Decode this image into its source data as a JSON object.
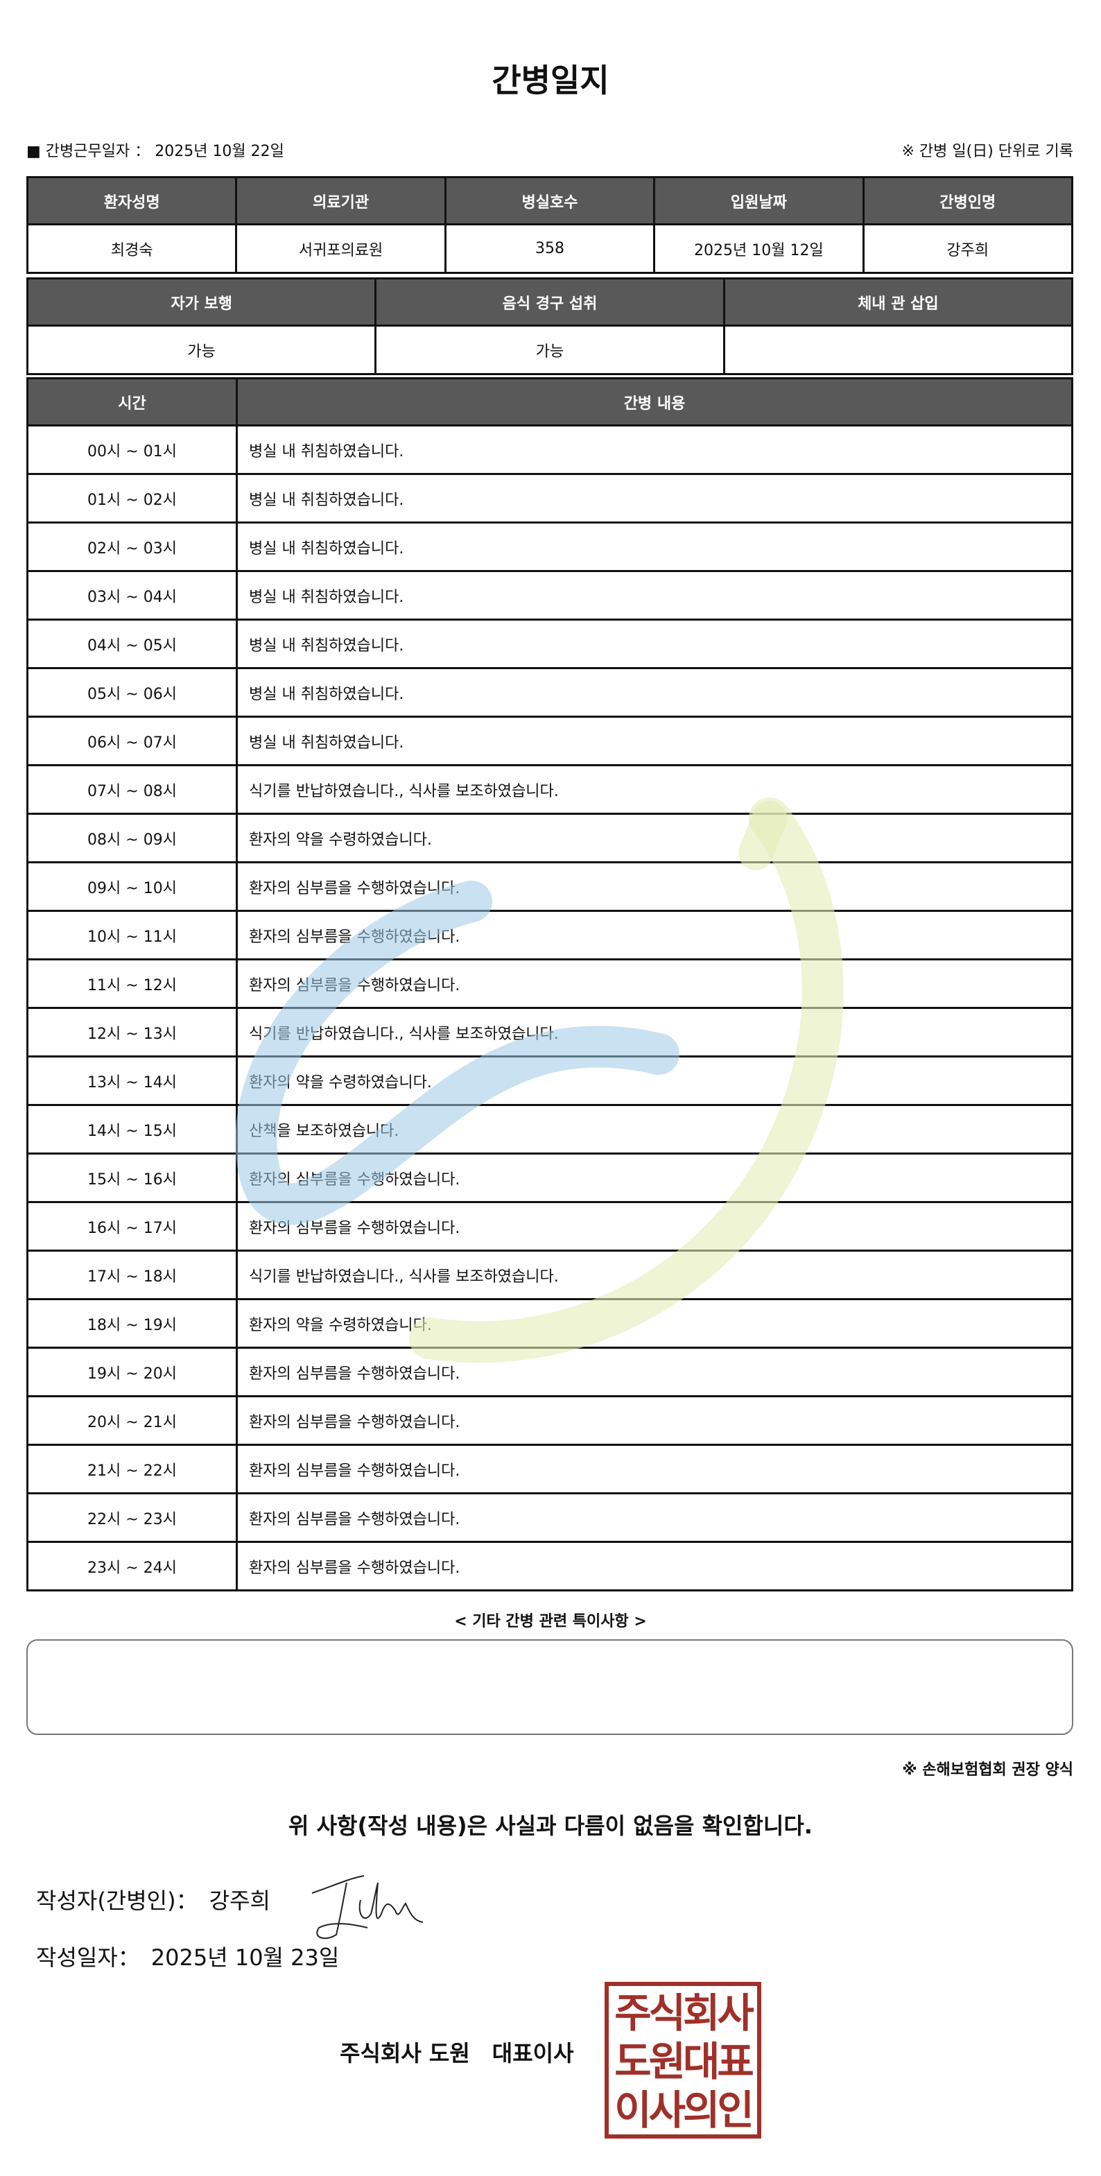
{
  "title": "간병일지",
  "info": {
    "work_date_label": "■ 간병근무일자 ：",
    "work_date": "2025년 10월 22일",
    "note": "※ 간병 일(日) 단위로 기록"
  },
  "patient": {
    "headers": [
      "환자성명",
      "의료기관",
      "병실호수",
      "입원날짜",
      "간병인명"
    ],
    "values": [
      "최경숙",
      "서귀포의료원",
      "358",
      "2025년 10월 12일",
      "강주희"
    ]
  },
  "status": {
    "headers": [
      "자가 보행",
      "음식 경구 섭취",
      "체내 관 삽입"
    ],
    "values": [
      "가능",
      "가능",
      ""
    ]
  },
  "log": {
    "headers": [
      "시간",
      "간병 내용"
    ],
    "rows": [
      [
        "00시 ~ 01시",
        "병실 내 취침하였습니다."
      ],
      [
        "01시 ~ 02시",
        "병실 내 취침하였습니다."
      ],
      [
        "02시 ~ 03시",
        "병실 내 취침하였습니다."
      ],
      [
        "03시 ~ 04시",
        "병실 내 취침하였습니다."
      ],
      [
        "04시 ~ 05시",
        "병실 내 취침하였습니다."
      ],
      [
        "05시 ~ 06시",
        "병실 내 취침하였습니다."
      ],
      [
        "06시 ~ 07시",
        "병실 내 취침하였습니다."
      ],
      [
        "07시 ~ 08시",
        "식기를 반납하였습니다., 식사를 보조하였습니다."
      ],
      [
        "08시 ~ 09시",
        "환자의 약을 수령하였습니다."
      ],
      [
        "09시 ~ 10시",
        "환자의 심부름을 수행하였습니다."
      ],
      [
        "10시 ~ 11시",
        "환자의 심부름을 수행하였습니다."
      ],
      [
        "11시 ~ 12시",
        "환자의 심부름을 수행하였습니다."
      ],
      [
        "12시 ~ 13시",
        "식기를 반납하였습니다., 식사를 보조하였습니다."
      ],
      [
        "13시 ~ 14시",
        "환자의 약을 수령하였습니다."
      ],
      [
        "14시 ~ 15시",
        "산책을 보조하였습니다."
      ],
      [
        "15시 ~ 16시",
        "환자의 심부름을 수행하였습니다."
      ],
      [
        "16시 ~ 17시",
        "환자의 심부름을 수행하였습니다."
      ],
      [
        "17시 ~ 18시",
        "식기를 반납하였습니다., 식사를 보조하였습니다."
      ],
      [
        "18시 ~ 19시",
        "환자의 약을 수령하였습니다."
      ],
      [
        "19시 ~ 20시",
        "환자의 심부름을 수행하였습니다."
      ],
      [
        "20시 ~ 21시",
        "환자의 심부름을 수행하였습니다."
      ],
      [
        "21시 ~ 22시",
        "환자의 심부름을 수행하였습니다."
      ],
      [
        "22시 ~ 23시",
        "환자의 심부름을 수행하였습니다."
      ],
      [
        "23시 ~ 24시",
        "환자의 심부름을 수행하였습니다."
      ]
    ]
  },
  "notes": {
    "label": "< 기타 간병 관련 특이사항 >",
    "value": ""
  },
  "form_note": "※ 손해보험협회 권장 양식",
  "confirm": "위 사항(작성 내용)은 사실과 다름이 없음을 확인합니다.",
  "author": {
    "label": "작성자(간병인)：",
    "name": "강주희"
  },
  "written": {
    "label": "작성일자：",
    "date": "2025년 10월 23일"
  },
  "company": "주식회사 도원　대표이사",
  "stamp_text": [
    "주식회사",
    "도원대표",
    "이사의인"
  ],
  "colors": {
    "header_bg": "#595959",
    "stamp": "#a0302a",
    "watermark_blue": "#9ec8e6",
    "watermark_green": "#e4edb8"
  }
}
